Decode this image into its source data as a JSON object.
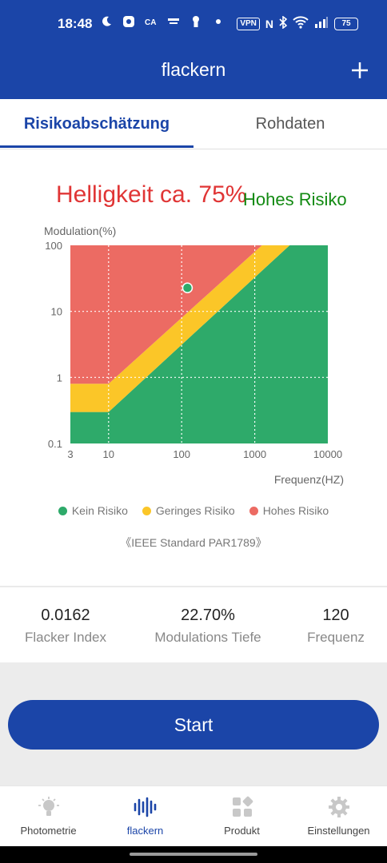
{
  "status_bar": {
    "time": "18:48",
    "left_icons": [
      "moon-icon",
      "app-icon",
      "ca-icon",
      "news-icon",
      "keyhole-icon",
      "dot-icon"
    ],
    "vpn": "VPN",
    "nfc": "N",
    "battery": "75"
  },
  "app_bar": {
    "title": "flackern",
    "add_icon": "plus-icon"
  },
  "tabs": [
    {
      "label": "Risikoabschätzung",
      "active": true
    },
    {
      "label": "Rohdaten",
      "active": false
    }
  ],
  "assessment": {
    "brightness": "Helligkeit ca. 75%",
    "risk": "Hohes Risiko"
  },
  "chart_data": {
    "type": "area",
    "ylabel": "Modulation(%)",
    "xlabel": "Frequenz(HZ)",
    "x_scale": "log",
    "y_scale": "log",
    "x_ticks": [
      "3",
      "10",
      "100",
      "1000",
      "10000"
    ],
    "y_ticks": [
      "100",
      "10",
      "1",
      "0.1"
    ],
    "xlim": [
      3,
      10000
    ],
    "ylim": [
      0.1,
      100
    ],
    "grid": true,
    "regions": [
      {
        "name": "Kein Risiko",
        "color": "#2eaa6a"
      },
      {
        "name": "Geringes Risiko",
        "color": "#fbc628"
      },
      {
        "name": "Hohes Risiko",
        "color": "#ec6b63"
      }
    ],
    "point": {
      "x": 120,
      "y": 22.7
    },
    "legend_position": "bottom"
  },
  "standard": "《IEEE Standard PAR1789》",
  "stats": [
    {
      "value": "0.0162",
      "label": "Flacker Index"
    },
    {
      "value": "22.70%",
      "label": "Modulations Tiefe"
    },
    {
      "value": "120",
      "label": "Frequenz"
    }
  ],
  "start_button": "Start",
  "bottom_nav": [
    {
      "label": "Photometrie",
      "icon": "bulb-icon",
      "active": false
    },
    {
      "label": "flackern",
      "icon": "waveform-icon",
      "active": true
    },
    {
      "label": "Produkt",
      "icon": "grid-icon",
      "active": false
    },
    {
      "label": "Einstellungen",
      "icon": "gear-icon",
      "active": false
    }
  ],
  "colors": {
    "primary": "#1b45a8",
    "risk_text": "#128a12",
    "brightness_text": "#e03535"
  }
}
